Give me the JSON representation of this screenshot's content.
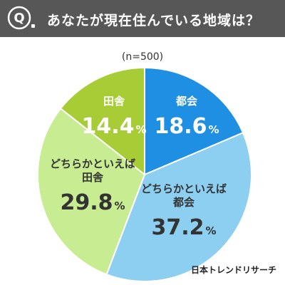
{
  "header": {
    "badge_letter": "Q",
    "question": "あなたが現在住んでいる地域は？",
    "background_color": "#575757"
  },
  "sample_note": "(n=500)",
  "footer": {
    "brand": "日本トレンドリサーチ"
  },
  "chart_data": {
    "type": "pie",
    "title": "あなたが現在住んでいる地域は？",
    "n_label": "(n=500)",
    "start_angle_deg": 0,
    "direction": "clockwise",
    "slices": [
      {
        "label": [
          "都会"
        ],
        "value": 18.6,
        "value_text": "18.6",
        "unit": "%",
        "color": "#1f8fe3",
        "text_color": "#ffffff"
      },
      {
        "label": [
          "どちらかといえば",
          "都会"
        ],
        "value": 37.2,
        "value_text": "37.2",
        "unit": "%",
        "color": "#8dcff0",
        "text_color": "#333333"
      },
      {
        "label": [
          "どちらかといえば",
          "田舎"
        ],
        "value": 29.8,
        "value_text": "29.8",
        "unit": "%",
        "color": "#c8ec91",
        "text_color": "#333333"
      },
      {
        "label": [
          "田舎"
        ],
        "value": 14.4,
        "value_text": "14.4",
        "unit": "%",
        "color": "#a7cc35",
        "text_color": "#ffffff"
      }
    ]
  }
}
